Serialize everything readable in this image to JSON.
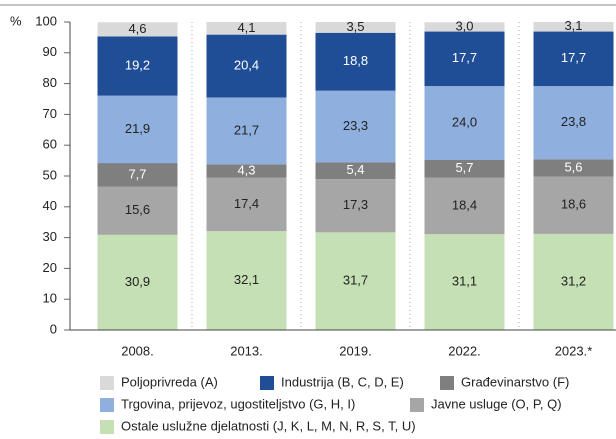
{
  "chart_data": {
    "type": "stacked_bar",
    "y_label": "%",
    "categories": [
      "2008.",
      "2013.",
      "2019.",
      "2022.",
      "2023.*"
    ],
    "series": [
      {
        "name": "Ostale uslužne djelatnosti (J, K, L, M, N, R, S, T, U)",
        "color": "#c5e0b4",
        "label_color": "#222",
        "values": [
          30.9,
          32.1,
          31.7,
          31.1,
          31.2
        ],
        "value_labels": [
          "30,9",
          "32,1",
          "31,7",
          "31,1",
          "31,2"
        ]
      },
      {
        "name": "Javne usluge (O, P, Q)",
        "color": "#a6a6a6",
        "label_color": "#222",
        "values": [
          15.6,
          17.4,
          17.3,
          18.4,
          18.6
        ],
        "value_labels": [
          "15,6",
          "17,4",
          "17,3",
          "18,4",
          "18,6"
        ]
      },
      {
        "name": "Građevinarstvo (F)",
        "color": "#7f7f7f",
        "label_color": "#fff",
        "values": [
          7.7,
          4.3,
          5.4,
          5.7,
          5.6
        ],
        "value_labels": [
          "7,7",
          "4,3",
          "5,4",
          "5,7",
          "5,6"
        ]
      },
      {
        "name": "Trgovina, prijevoz, ugostiteljstvo (G, H, I)",
        "color": "#8fb0de",
        "label_color": "#222",
        "values": [
          21.9,
          21.7,
          23.3,
          24.0,
          23.8
        ],
        "value_labels": [
          "21,9",
          "21,7",
          "23,3",
          "24,0",
          "23,8"
        ]
      },
      {
        "name": "Industrija (B, C, D, E)",
        "color": "#1f4e96",
        "label_color": "#fff",
        "values": [
          19.2,
          20.4,
          18.8,
          17.7,
          17.7
        ],
        "value_labels": [
          "19,2",
          "20,4",
          "18,8",
          "17,7",
          "17,7"
        ]
      },
      {
        "name": "Poljoprivreda (A)",
        "color": "#d9d9d9",
        "label_color": "#222",
        "values": [
          4.6,
          4.1,
          3.5,
          3.0,
          3.1
        ],
        "value_labels": [
          "4,6",
          "4,1",
          "3,5",
          "3,0",
          "3,1"
        ]
      }
    ],
    "ylim": [
      0,
      100
    ],
    "yticks": [
      0,
      10,
      20,
      30,
      40,
      50,
      60,
      70,
      80,
      90,
      100
    ]
  }
}
